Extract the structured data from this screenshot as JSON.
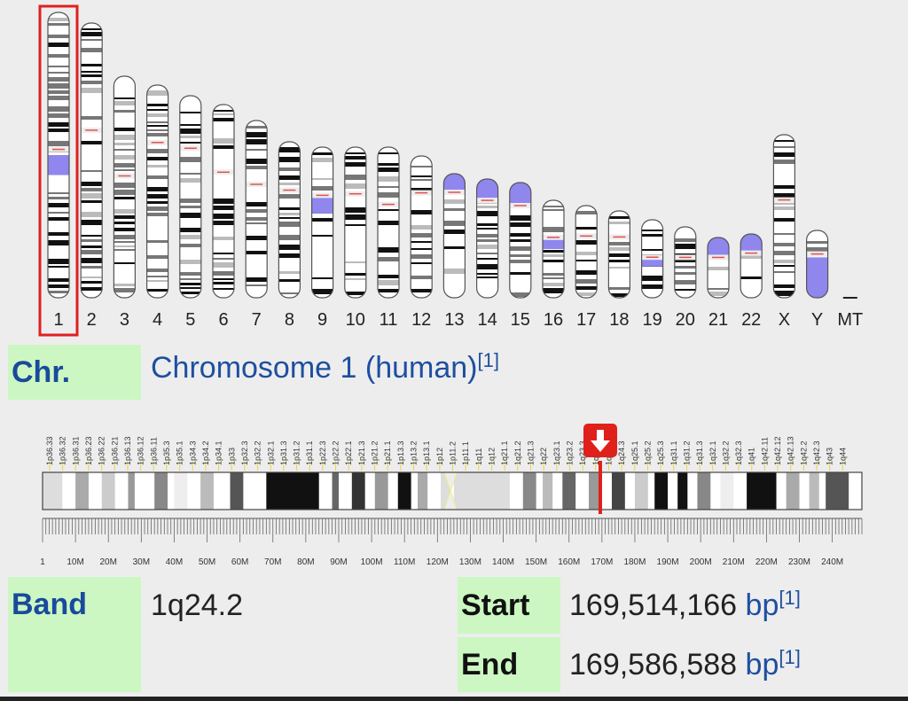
{
  "karyotype": {
    "chromosomes": [
      {
        "label": "1",
        "height": 322,
        "cent": 0.48,
        "blue": [
          0.5,
          0.57
        ]
      },
      {
        "label": "2",
        "height": 310,
        "cent": 0.39,
        "blue": []
      },
      {
        "label": "3",
        "height": 250,
        "cent": 0.45,
        "blue": []
      },
      {
        "label": "4",
        "height": 240,
        "cent": 0.27,
        "blue": []
      },
      {
        "label": "5",
        "height": 228,
        "cent": 0.26,
        "blue": []
      },
      {
        "label": "6",
        "height": 218,
        "cent": 0.35,
        "blue": []
      },
      {
        "label": "7",
        "height": 200,
        "cent": 0.36,
        "blue": []
      },
      {
        "label": "8",
        "height": 176,
        "cent": 0.31,
        "blue": []
      },
      {
        "label": "9",
        "height": 170,
        "cent": 0.32,
        "blue": [
          0.33,
          0.44
        ]
      },
      {
        "label": "10",
        "height": 170,
        "cent": 0.31,
        "blue": []
      },
      {
        "label": "11",
        "height": 170,
        "cent": 0.38,
        "blue": []
      },
      {
        "label": "12",
        "height": 160,
        "cent": 0.26,
        "blue": []
      },
      {
        "label": "13",
        "height": 140,
        "cent": 0.15,
        "blue": [
          0,
          0.15
        ]
      },
      {
        "label": "14",
        "height": 134,
        "cent": 0.18,
        "blue": [
          0,
          0.18
        ]
      },
      {
        "label": "15",
        "height": 130,
        "cent": 0.2,
        "blue": [
          0,
          0.2
        ]
      },
      {
        "label": "16",
        "height": 110,
        "cent": 0.38,
        "blue": [
          0.4,
          0.5
        ]
      },
      {
        "label": "17",
        "height": 104,
        "cent": 0.33,
        "blue": []
      },
      {
        "label": "18",
        "height": 98,
        "cent": 0.3,
        "blue": []
      },
      {
        "label": "19",
        "height": 88,
        "cent": 0.48,
        "blue": [
          0.48,
          0.6
        ]
      },
      {
        "label": "20",
        "height": 80,
        "cent": 0.43,
        "blue": []
      },
      {
        "label": "21",
        "height": 68,
        "cent": 0.33,
        "blue": [
          0,
          0.33
        ]
      },
      {
        "label": "22",
        "height": 72,
        "cent": 0.3,
        "blue": [
          0,
          0.3
        ]
      },
      {
        "label": "X",
        "height": 184,
        "cent": 0.4,
        "blue": []
      },
      {
        "label": "Y",
        "height": 76,
        "cent": 0.35,
        "blue": [
          0.4,
          1
        ]
      },
      {
        "label": "MT",
        "height": 0,
        "cent": 0,
        "blue": []
      }
    ],
    "selected": "1"
  },
  "chr_row": {
    "label": "Chr.",
    "value": "Chromosome 1 (human)",
    "ref": "[1]"
  },
  "band_map": {
    "band_labels": [
      "1p36.33",
      "1p36.32",
      "1p36.31",
      "1p36.23",
      "1p36.22",
      "1p36.21",
      "1p36.13",
      "1p36.12",
      "1p36.11",
      "1p35.3",
      "1p35.1",
      "1p34.3",
      "1p34.2",
      "1p34.1",
      "1p33",
      "1p32.3",
      "1p32.2",
      "1p32.1",
      "1p31.3",
      "1p31.2",
      "1p31.1",
      "1p22.3",
      "1p22.2",
      "1p22.1",
      "1p21.3",
      "1p21.2",
      "1p21.1",
      "1p13.3",
      "1p13.2",
      "1p13.1",
      "1p12",
      "1p11.2",
      "1p11.1",
      "1q11",
      "1q12",
      "1q21.1",
      "1q21.2",
      "1q21.3",
      "1q22",
      "1q23.1",
      "1q23.2",
      "1q23.3",
      "1q24.1",
      "1q24.2",
      "1q24.3",
      "1q25.1",
      "1q25.2",
      "1q25.3",
      "1q31.1",
      "1q31.2",
      "1q31.3",
      "1q32.1",
      "1q32.2",
      "1q32.3",
      "1q41",
      "1q42.11",
      "1q42.12",
      "1q42.13",
      "1q42.2",
      "1q42.3",
      "1q43",
      "1q44"
    ],
    "axis_labels": [
      "1",
      "10M",
      "20M",
      "30M",
      "40M",
      "50M",
      "60M",
      "70M",
      "80M",
      "90M",
      "100M",
      "110M",
      "120M",
      "130M",
      "140M",
      "150M",
      "160M",
      "170M",
      "180M",
      "190M",
      "200M",
      "210M",
      "220M",
      "230M",
      "240M"
    ],
    "length_mb": 249,
    "marker_mb": 169.5,
    "marker_color": "#e0201a"
  },
  "band_row": {
    "label": "Band",
    "value": "1q24.2"
  },
  "start_row": {
    "label": "Start",
    "value": "169,514,166",
    "unit": "bp",
    "ref": "[1]"
  },
  "end_row": {
    "label": "End",
    "value": "169,586,588",
    "unit": "bp",
    "ref": "[1]"
  }
}
